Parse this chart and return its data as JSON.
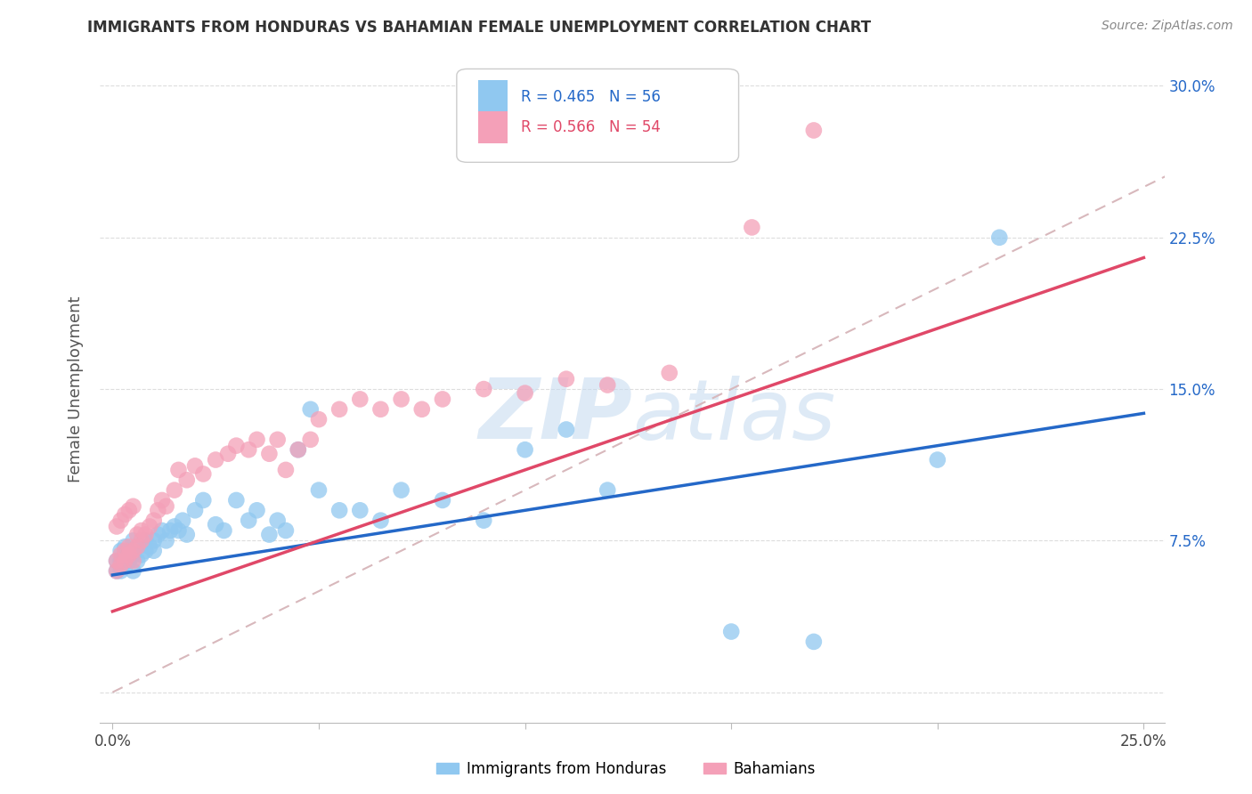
{
  "title": "IMMIGRANTS FROM HONDURAS VS BAHAMIAN FEMALE UNEMPLOYMENT CORRELATION CHART",
  "source": "Source: ZipAtlas.com",
  "ylabel": "Female Unemployment",
  "xlim": [
    -0.003,
    0.255
  ],
  "ylim": [
    -0.015,
    0.315
  ],
  "xticks": [
    0.0,
    0.05,
    0.1,
    0.15,
    0.2,
    0.25
  ],
  "yticks": [
    0.0,
    0.075,
    0.15,
    0.225,
    0.3
  ],
  "xtick_labels": [
    "0.0%",
    "",
    "",
    "",
    "",
    "25.0%"
  ],
  "ytick_labels": [
    "",
    "7.5%",
    "15.0%",
    "22.5%",
    "30.0%"
  ],
  "legend_blue_label": "Immigrants from Honduras",
  "legend_pink_label": "Bahamians",
  "r_blue": "0.465",
  "n_blue": "56",
  "r_pink": "0.566",
  "n_pink": "54",
  "blue_color": "#90C8F0",
  "pink_color": "#F4A0B8",
  "blue_line_color": "#2468C8",
  "pink_line_color": "#E04868",
  "diag_line_color": "#D8B8BC",
  "watermark_color": "#C8DCF0",
  "blue_x": [
    0.001,
    0.001,
    0.002,
    0.002,
    0.002,
    0.003,
    0.003,
    0.003,
    0.004,
    0.004,
    0.005,
    0.005,
    0.005,
    0.006,
    0.006,
    0.007,
    0.007,
    0.008,
    0.008,
    0.009,
    0.01,
    0.01,
    0.011,
    0.012,
    0.013,
    0.014,
    0.015,
    0.016,
    0.017,
    0.018,
    0.02,
    0.022,
    0.025,
    0.027,
    0.03,
    0.033,
    0.035,
    0.038,
    0.04,
    0.042,
    0.045,
    0.048,
    0.05,
    0.055,
    0.06,
    0.065,
    0.07,
    0.08,
    0.09,
    0.1,
    0.11,
    0.12,
    0.15,
    0.17,
    0.2,
    0.215
  ],
  "blue_y": [
    0.06,
    0.065,
    0.06,
    0.065,
    0.07,
    0.062,
    0.068,
    0.072,
    0.065,
    0.07,
    0.06,
    0.068,
    0.075,
    0.065,
    0.072,
    0.068,
    0.073,
    0.07,
    0.075,
    0.072,
    0.07,
    0.075,
    0.078,
    0.08,
    0.075,
    0.08,
    0.082,
    0.08,
    0.085,
    0.078,
    0.09,
    0.095,
    0.083,
    0.08,
    0.095,
    0.085,
    0.09,
    0.078,
    0.085,
    0.08,
    0.12,
    0.14,
    0.1,
    0.09,
    0.09,
    0.085,
    0.1,
    0.095,
    0.085,
    0.12,
    0.13,
    0.1,
    0.03,
    0.025,
    0.115,
    0.225
  ],
  "pink_x": [
    0.001,
    0.001,
    0.001,
    0.002,
    0.002,
    0.002,
    0.003,
    0.003,
    0.003,
    0.004,
    0.004,
    0.004,
    0.005,
    0.005,
    0.005,
    0.006,
    0.006,
    0.007,
    0.007,
    0.008,
    0.009,
    0.01,
    0.011,
    0.012,
    0.013,
    0.015,
    0.016,
    0.018,
    0.02,
    0.022,
    0.025,
    0.028,
    0.03,
    0.033,
    0.035,
    0.038,
    0.04,
    0.042,
    0.045,
    0.048,
    0.05,
    0.055,
    0.06,
    0.065,
    0.07,
    0.075,
    0.08,
    0.09,
    0.1,
    0.11,
    0.12,
    0.135,
    0.155,
    0.17
  ],
  "pink_y": [
    0.06,
    0.065,
    0.082,
    0.063,
    0.068,
    0.085,
    0.065,
    0.07,
    0.088,
    0.068,
    0.072,
    0.09,
    0.065,
    0.07,
    0.092,
    0.072,
    0.078,
    0.075,
    0.08,
    0.078,
    0.082,
    0.085,
    0.09,
    0.095,
    0.092,
    0.1,
    0.11,
    0.105,
    0.112,
    0.108,
    0.115,
    0.118,
    0.122,
    0.12,
    0.125,
    0.118,
    0.125,
    0.11,
    0.12,
    0.125,
    0.135,
    0.14,
    0.145,
    0.14,
    0.145,
    0.14,
    0.145,
    0.15,
    0.148,
    0.155,
    0.152,
    0.158,
    0.23,
    0.278
  ]
}
